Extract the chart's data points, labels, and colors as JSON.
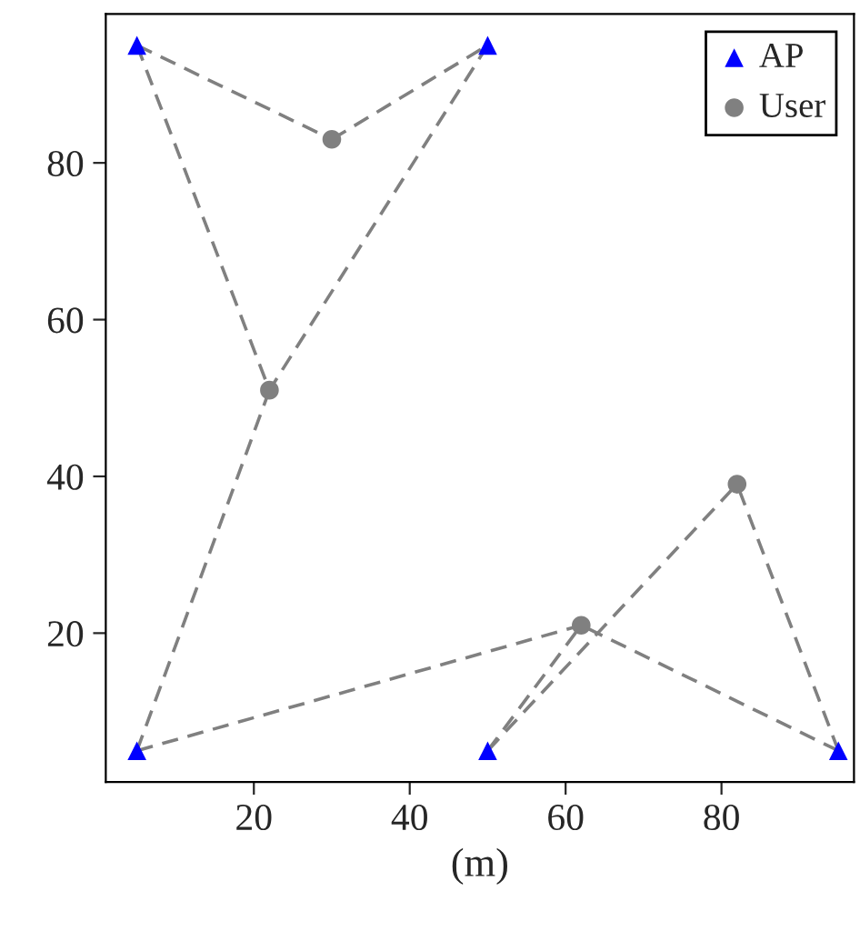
{
  "chart_data": {
    "type": "scatter",
    "xlabel": "(m)",
    "xlim": [
      1,
      97
    ],
    "ylim": [
      1,
      99
    ],
    "xticks": [
      20,
      40,
      60,
      80
    ],
    "yticks": [
      20,
      40,
      60,
      80
    ],
    "grid": false,
    "legend": "top right",
    "series": [
      {
        "type": "line",
        "color": "#808080",
        "line_style": "dashed",
        "marker": "none",
        "x": [
          5,
          30
        ],
        "values": [
          95,
          83
        ]
      },
      {
        "type": "line",
        "color": "#808080",
        "line_style": "dashed",
        "marker": "none",
        "x": [
          30,
          50
        ],
        "values": [
          83,
          95
        ]
      },
      {
        "type": "line",
        "color": "#808080",
        "line_style": "dashed",
        "marker": "none",
        "x": [
          5,
          22
        ],
        "values": [
          95,
          51
        ]
      },
      {
        "type": "line",
        "color": "#808080",
        "line_style": "dashed",
        "marker": "none",
        "x": [
          50,
          22
        ],
        "values": [
          95,
          51
        ]
      },
      {
        "type": "line",
        "color": "#808080",
        "line_style": "dashed",
        "marker": "none",
        "x": [
          5,
          22
        ],
        "values": [
          5,
          51
        ]
      },
      {
        "type": "line",
        "color": "#808080",
        "line_style": "dashed",
        "marker": "none",
        "x": [
          5,
          62
        ],
        "values": [
          5,
          21
        ]
      },
      {
        "type": "line",
        "color": "#808080",
        "line_style": "dashed",
        "marker": "none",
        "x": [
          50,
          62
        ],
        "values": [
          5,
          21
        ]
      },
      {
        "type": "line",
        "color": "#808080",
        "line_style": "dashed",
        "marker": "none",
        "x": [
          95,
          62
        ],
        "values": [
          5,
          21
        ]
      },
      {
        "type": "line",
        "color": "#808080",
        "line_style": "dashed",
        "marker": "none",
        "x": [
          50,
          82
        ],
        "values": [
          5,
          39
        ]
      },
      {
        "type": "line",
        "color": "#808080",
        "line_style": "dashed",
        "marker": "none",
        "x": [
          95,
          82
        ],
        "values": [
          5,
          39
        ]
      },
      {
        "name": "AP",
        "color": "#0000ff",
        "marker": "triangle",
        "x": [
          5,
          50,
          5,
          50,
          95
        ],
        "values": [
          95,
          95,
          5,
          5,
          5
        ]
      },
      {
        "name": "User",
        "color": "#808080",
        "marker": "circle",
        "x": [
          30,
          22,
          62,
          82
        ],
        "values": [
          83,
          51,
          21,
          39
        ]
      }
    ]
  }
}
